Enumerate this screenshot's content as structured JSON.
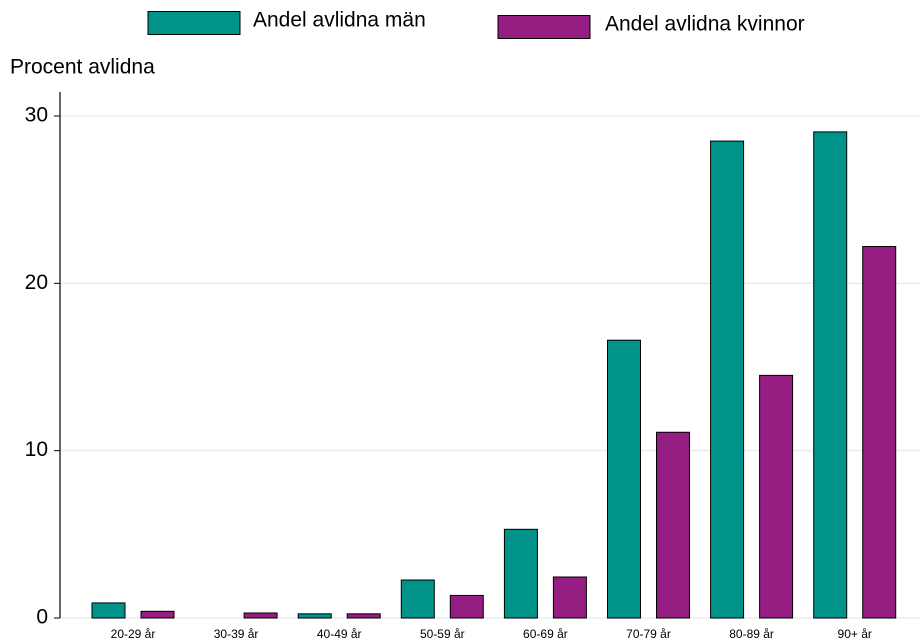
{
  "chart_data": {
    "type": "bar",
    "ylabel": "Procent avlidna",
    "categories": [
      "20-29 år",
      "30-39 år",
      "40-49 år",
      "50-59 år",
      "60-69 år",
      "70-79 år",
      "80-89 år",
      "90+ år"
    ],
    "series": [
      {
        "name": "Andel avlidna män",
        "color": "#00938a",
        "values": [
          0.9,
          0,
          0.25,
          2.27,
          5.3,
          16.6,
          28.5,
          29.05
        ]
      },
      {
        "name": "Andel avlidna kvinnor",
        "color": "#961d82",
        "values": [
          0.4,
          0.3,
          0.25,
          1.35,
          2.45,
          11.1,
          14.5,
          22.2
        ]
      }
    ],
    "ylim": [
      0,
      30
    ],
    "yticks": [
      0,
      10,
      20,
      30
    ],
    "grid": true
  }
}
